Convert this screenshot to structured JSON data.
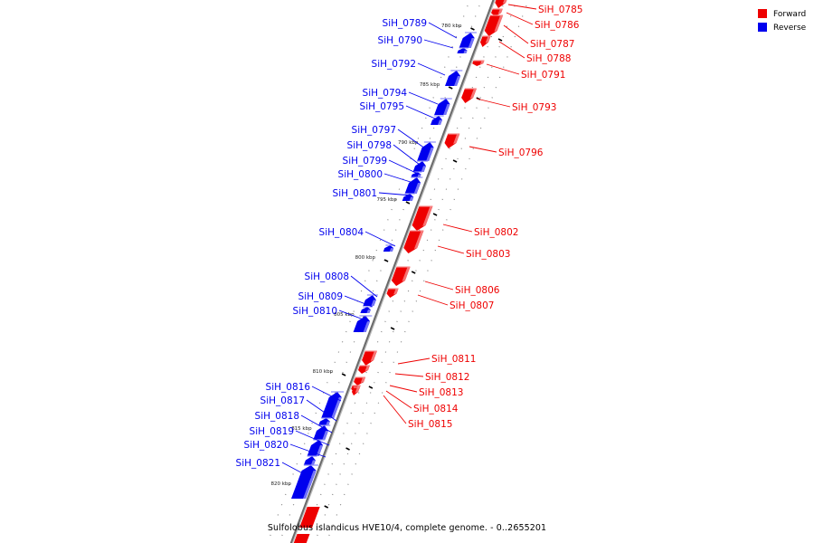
{
  "legend": [
    {
      "label": "Forward",
      "color": "#ee0000"
    },
    {
      "label": "Reverse",
      "color": "#0000ee"
    }
  ],
  "caption": "Sulfolobus islandicus HVE10/4, complete genome. - 0..2655201",
  "colors": {
    "forward": "#ee0000",
    "reverse": "#0000ee",
    "backbone": "#777777"
  },
  "ticks": [
    {
      "label": "780 kbp",
      "kbp": 780
    },
    {
      "label": "785 kbp",
      "kbp": 785
    },
    {
      "label": "790 kbp",
      "kbp": 790
    },
    {
      "label": "795 kbp",
      "kbp": 795
    },
    {
      "label": "800 kbp",
      "kbp": 800
    },
    {
      "label": "805 kbp",
      "kbp": 805
    },
    {
      "label": "810 kbp",
      "kbp": 810
    },
    {
      "label": "815 kbp",
      "kbp": 815
    },
    {
      "label": "820 kbp",
      "kbp": 820
    }
  ],
  "genes": [
    {
      "name": "SiH_0785",
      "strand": "forward"
    },
    {
      "name": "SiH_0786",
      "strand": "forward"
    },
    {
      "name": "SiH_0787",
      "strand": "forward"
    },
    {
      "name": "SiH_0788",
      "strand": "forward"
    },
    {
      "name": "SiH_0789",
      "strand": "reverse"
    },
    {
      "name": "SiH_0790",
      "strand": "reverse"
    },
    {
      "name": "SiH_0791",
      "strand": "forward"
    },
    {
      "name": "SiH_0792",
      "strand": "reverse"
    },
    {
      "name": "SiH_0793",
      "strand": "forward"
    },
    {
      "name": "SiH_0794",
      "strand": "reverse"
    },
    {
      "name": "SiH_0795",
      "strand": "reverse"
    },
    {
      "name": "SiH_0796",
      "strand": "forward"
    },
    {
      "name": "SiH_0797",
      "strand": "reverse"
    },
    {
      "name": "SiH_0798",
      "strand": "reverse"
    },
    {
      "name": "SiH_0799",
      "strand": "reverse"
    },
    {
      "name": "SiH_0800",
      "strand": "reverse"
    },
    {
      "name": "SiH_0801",
      "strand": "reverse"
    },
    {
      "name": "SiH_0802",
      "strand": "forward"
    },
    {
      "name": "SiH_0803",
      "strand": "forward"
    },
    {
      "name": "SiH_0804",
      "strand": "reverse"
    },
    {
      "name": "SiH_0806",
      "strand": "forward"
    },
    {
      "name": "SiH_0807",
      "strand": "forward"
    },
    {
      "name": "SiH_0808",
      "strand": "reverse"
    },
    {
      "name": "SiH_0809",
      "strand": "reverse"
    },
    {
      "name": "SiH_0810",
      "strand": "reverse"
    },
    {
      "name": "SiH_0811",
      "strand": "forward"
    },
    {
      "name": "SiH_0812",
      "strand": "forward"
    },
    {
      "name": "SiH_0813",
      "strand": "forward"
    },
    {
      "name": "SiH_0814",
      "strand": "forward"
    },
    {
      "name": "SiH_0815",
      "strand": "forward"
    },
    {
      "name": "SiH_0816",
      "strand": "reverse"
    },
    {
      "name": "SiH_0817",
      "strand": "reverse"
    },
    {
      "name": "SiH_0818",
      "strand": "reverse"
    },
    {
      "name": "SiH_0819",
      "strand": "reverse"
    },
    {
      "name": "SiH_0820",
      "strand": "reverse"
    },
    {
      "name": "SiH_0821",
      "strand": "reverse"
    }
  ]
}
